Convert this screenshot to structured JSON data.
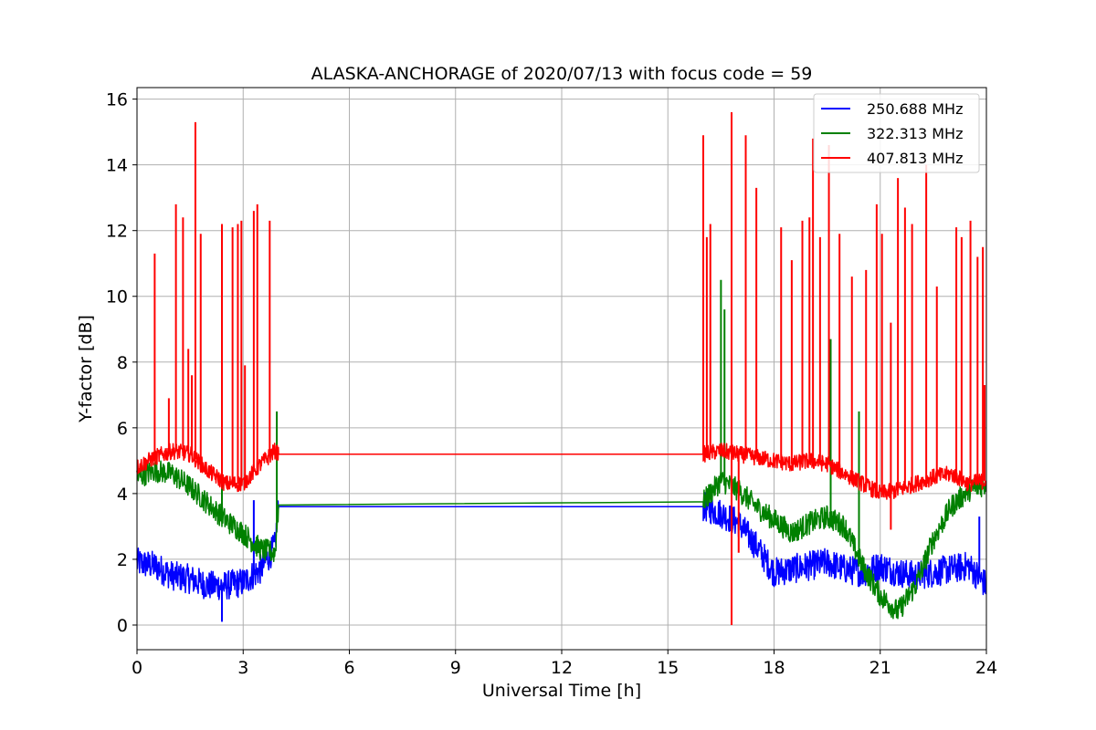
{
  "chart_data": {
    "type": "line",
    "title": "ALASKA-ANCHORAGE of 2020/07/13 with focus code = 59",
    "xlabel": "Universal Time [h]",
    "ylabel": "Y-factor [dB]",
    "xlim": [
      0,
      24
    ],
    "ylim": [
      -0.75,
      16.35
    ],
    "xticks": [
      0,
      3,
      6,
      9,
      12,
      15,
      18,
      21,
      24
    ],
    "yticks": [
      0,
      2,
      4,
      6,
      8,
      10,
      12,
      14,
      16
    ],
    "grid": true,
    "legend_position": "top-right",
    "data_gap": [
      4.0,
      16.0
    ],
    "series": [
      {
        "name": "250.688 MHz",
        "color": "#0000ff",
        "x": [
          0,
          0.5,
          1.0,
          1.5,
          2.0,
          2.5,
          3.0,
          3.5,
          3.9,
          4.0,
          16.0,
          16.5,
          17.0,
          17.5,
          18.0,
          18.5,
          19.0,
          19.5,
          20.0,
          20.5,
          21.0,
          21.5,
          22.0,
          22.5,
          23.0,
          23.5,
          24.0
        ],
        "values": [
          1.9,
          1.8,
          1.5,
          1.4,
          1.2,
          1.2,
          1.3,
          1.7,
          2.4,
          3.6,
          3.6,
          3.4,
          3.1,
          2.4,
          1.6,
          1.7,
          1.8,
          1.9,
          1.7,
          1.6,
          1.8,
          1.6,
          1.5,
          1.6,
          1.7,
          1.8,
          1.2
        ],
        "spikes": [
          [
            2.4,
            0.1
          ],
          [
            3.3,
            3.8
          ],
          [
            23.8,
            3.3
          ]
        ]
      },
      {
        "name": "322.313 MHz",
        "color": "#008000",
        "x": [
          0,
          0.5,
          1.0,
          1.5,
          2.0,
          2.5,
          3.0,
          3.5,
          3.9,
          4.0,
          16.0,
          16.5,
          17.0,
          17.5,
          18.0,
          18.5,
          19.0,
          19.5,
          20.0,
          20.5,
          21.0,
          21.5,
          22.0,
          22.5,
          23.0,
          23.5,
          24.0
        ],
        "values": [
          4.5,
          4.7,
          4.6,
          4.2,
          3.7,
          3.2,
          2.8,
          2.3,
          2.2,
          3.65,
          3.75,
          4.4,
          4.1,
          3.6,
          3.2,
          2.8,
          3.1,
          3.3,
          3.0,
          1.8,
          0.9,
          0.4,
          1.2,
          2.6,
          3.6,
          4.1,
          4.3
        ],
        "spikes": [
          [
            2.4,
            5.0
          ],
          [
            3.95,
            6.5
          ],
          [
            16.5,
            10.5
          ],
          [
            16.6,
            9.6
          ],
          [
            19.6,
            8.7
          ],
          [
            20.4,
            6.5
          ]
        ]
      },
      {
        "name": "407.813 MHz",
        "color": "#ff0000",
        "x": [
          0,
          0.5,
          1.0,
          1.5,
          2.0,
          2.5,
          3.0,
          3.5,
          3.9,
          4.0,
          16.0,
          16.5,
          17.0,
          17.5,
          18.0,
          18.5,
          19.0,
          19.5,
          20.0,
          20.5,
          21.0,
          21.5,
          22.0,
          22.5,
          23.0,
          23.5,
          24.0
        ],
        "values": [
          4.8,
          5.1,
          5.3,
          5.2,
          4.7,
          4.3,
          4.3,
          4.9,
          5.3,
          5.2,
          5.2,
          5.3,
          5.2,
          5.1,
          5.0,
          4.9,
          5.0,
          4.9,
          4.6,
          4.3,
          4.0,
          4.1,
          4.3,
          4.5,
          4.6,
          4.3,
          4.4
        ],
        "spikes": [
          [
            0.5,
            11.3
          ],
          [
            0.9,
            6.9
          ],
          [
            1.1,
            12.8
          ],
          [
            1.3,
            12.4
          ],
          [
            1.45,
            8.4
          ],
          [
            1.55,
            7.6
          ],
          [
            1.65,
            15.3
          ],
          [
            1.8,
            11.9
          ],
          [
            2.4,
            12.2
          ],
          [
            2.7,
            12.1
          ],
          [
            2.85,
            12.2
          ],
          [
            2.95,
            12.3
          ],
          [
            3.05,
            7.9
          ],
          [
            3.3,
            12.6
          ],
          [
            3.4,
            12.8
          ],
          [
            3.75,
            12.3
          ],
          [
            16.0,
            14.9
          ],
          [
            16.1,
            11.8
          ],
          [
            16.2,
            12.2
          ],
          [
            16.8,
            15.6
          ],
          [
            17.2,
            14.9
          ],
          [
            17.5,
            13.3
          ],
          [
            18.2,
            12.1
          ],
          [
            18.5,
            11.1
          ],
          [
            18.8,
            12.3
          ],
          [
            19.0,
            12.4
          ],
          [
            19.1,
            14.8
          ],
          [
            19.3,
            11.8
          ],
          [
            19.55,
            14.6
          ],
          [
            19.85,
            11.9
          ],
          [
            20.2,
            10.6
          ],
          [
            20.6,
            10.8
          ],
          [
            20.9,
            12.8
          ],
          [
            21.05,
            11.9
          ],
          [
            21.3,
            9.2
          ],
          [
            21.5,
            13.6
          ],
          [
            21.7,
            12.7
          ],
          [
            21.9,
            12.2
          ],
          [
            22.3,
            14.0
          ],
          [
            22.6,
            10.3
          ],
          [
            23.15,
            12.1
          ],
          [
            23.3,
            11.8
          ],
          [
            23.55,
            12.3
          ],
          [
            23.75,
            11.2
          ],
          [
            23.9,
            11.5
          ],
          [
            23.95,
            7.3
          ]
        ],
        "dips": [
          [
            16.8,
            0.0
          ],
          [
            17.0,
            2.2
          ],
          [
            21.3,
            2.9
          ]
        ]
      }
    ]
  }
}
